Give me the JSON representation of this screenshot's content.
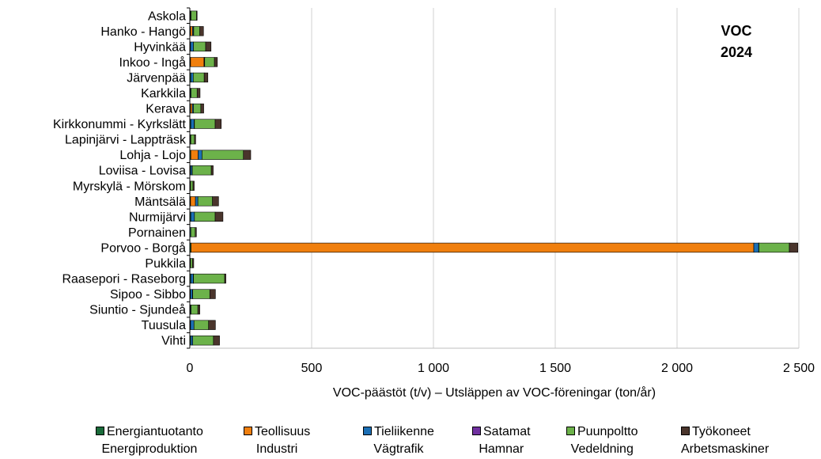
{
  "chart_data": {
    "type": "bar",
    "orientation": "horizontal",
    "stacked": true,
    "annotation": [
      "VOC",
      "2024"
    ],
    "xlabel": "VOC-päästöt (t/v) –  Utsläppen av VOC-föreningar (ton/år)",
    "ylabel": "",
    "xlim": [
      0,
      2500
    ],
    "xticks": [
      0,
      500,
      1000,
      1500,
      2000,
      2500
    ],
    "xtick_labels": [
      "0",
      "500",
      "1 000",
      "1 500",
      "2 000",
      "2 500"
    ],
    "grid": "vertical",
    "legend_position": "bottom",
    "categories": [
      "Askola",
      "Hanko - Hangö",
      "Hyvinkää",
      "Inkoo - Ingå",
      "Järvenpää",
      "Karkkila",
      "Kerava",
      "Kirkkonummi - Kyrkslätt",
      "Lapinjärvi - Lappträsk",
      "Lohja - Lojo",
      "Loviisa - Lovisa",
      "Myrskylä - Mörskom",
      "Mäntsälä",
      "Nurmijärvi",
      "Pornainen",
      "Porvoo - Borgå",
      "Pukkila",
      "Raasepori - Raseborg",
      "Sipoo - Sibbo",
      "Siuntio - Sjundeå",
      "Tuusula",
      "Vihti"
    ],
    "series": [
      {
        "name": "Energiantuotanto",
        "name_sv": "Energiproduktion",
        "color": "#1a6b3a",
        "values": [
          3,
          3,
          3,
          3,
          4,
          2,
          3,
          4,
          2,
          4,
          3,
          1,
          3,
          4,
          1,
          5,
          1,
          4,
          3,
          2,
          3,
          4
        ]
      },
      {
        "name": "Teollisuus",
        "name_sv": "Industri",
        "color": "#f07f0e",
        "values": [
          0,
          8,
          0,
          55,
          0,
          0,
          7,
          0,
          0,
          30,
          0,
          0,
          20,
          0,
          0,
          2310,
          0,
          0,
          0,
          0,
          0,
          0
        ]
      },
      {
        "name": "Tieliikenne",
        "name_sv": "Vägtrafik",
        "color": "#1b6fb5",
        "values": [
          2,
          4,
          12,
          2,
          10,
          3,
          5,
          14,
          2,
          16,
          6,
          2,
          10,
          15,
          3,
          20,
          2,
          10,
          8,
          3,
          14,
          8
        ]
      },
      {
        "name": "Satamat",
        "name_sv": "Hamnar",
        "color": "#7030a0",
        "values": [
          0,
          1,
          0,
          1,
          0,
          0,
          0,
          1,
          0,
          0,
          1,
          0,
          0,
          0,
          0,
          1,
          0,
          1,
          1,
          0,
          0,
          0
        ]
      },
      {
        "name": "Puunpoltto",
        "name_sv": "Vedeldning",
        "color": "#6cb24a",
        "values": [
          22,
          25,
          50,
          40,
          45,
          25,
          30,
          85,
          15,
          170,
          78,
          10,
          60,
          85,
          18,
          125,
          8,
          128,
          70,
          28,
          60,
          85
        ]
      },
      {
        "name": "Työkoneet",
        "name_sv": "Arbetsmaskiner",
        "color": "#4a352c",
        "values": [
          3,
          15,
          22,
          12,
          15,
          12,
          12,
          25,
          5,
          30,
          8,
          5,
          25,
          32,
          5,
          35,
          5,
          5,
          23,
          8,
          28,
          25
        ]
      }
    ]
  }
}
